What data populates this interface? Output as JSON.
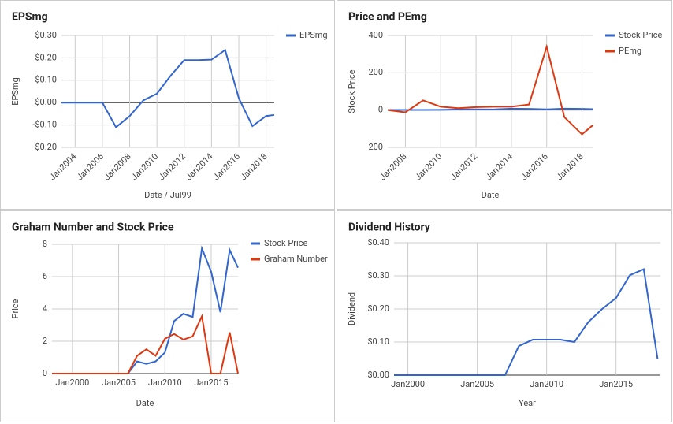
{
  "chart_data": [
    {
      "type": "line",
      "title": "EPSmg",
      "x_label": "Date / Jul99",
      "y_label": "EPSmg",
      "x": [
        2003,
        2004,
        2005,
        2006,
        2007,
        2008,
        2009,
        2010,
        2011,
        2012,
        2013,
        2014,
        2015,
        2016,
        2017,
        2018,
        2018.6
      ],
      "series": [
        {
          "name": "EPSmg",
          "color": "#3366cc",
          "values": [
            0,
            0,
            0,
            0,
            -0.11,
            -0.06,
            0.01,
            0.04,
            0.12,
            0.19,
            0.19,
            0.192,
            0.235,
            0.02,
            -0.105,
            -0.06,
            -0.055
          ]
        }
      ],
      "xlim": [
        2003,
        2018.6
      ],
      "xticks": [
        {
          "value": 2004,
          "label": "Jan2004"
        },
        {
          "value": 2006,
          "label": "Jan2006"
        },
        {
          "value": 2008,
          "label": "Jan2008"
        },
        {
          "value": 2010,
          "label": "Jan2010"
        },
        {
          "value": 2012,
          "label": "Jan2012"
        },
        {
          "value": 2014,
          "label": "Jan2014"
        },
        {
          "value": 2016,
          "label": "Jan2016"
        },
        {
          "value": 2018,
          "label": "Jan2018"
        }
      ],
      "xtick_rotation": -45,
      "ylim": [
        -0.2,
        0.3
      ],
      "yticks": [
        {
          "value": 0.3,
          "label": "$0.30"
        },
        {
          "value": 0.2,
          "label": "$0.20"
        },
        {
          "value": 0.1,
          "label": "$0.10"
        },
        {
          "value": 0,
          "label": "$0.00"
        },
        {
          "value": -0.1,
          "label": "-$0.10"
        },
        {
          "value": -0.2,
          "label": "-$0.20"
        }
      ],
      "grid": true,
      "legend": "right"
    },
    {
      "type": "line",
      "title": "Price and PEmg",
      "x_label": "Date",
      "y_label": "Stock Price",
      "x": [
        2007,
        2008,
        2009,
        2010,
        2011,
        2012,
        2013,
        2014,
        2015,
        2016,
        2017,
        2018,
        2018.6
      ],
      "series": [
        {
          "name": "Stock Price",
          "color": "#3366cc",
          "values": [
            0.75,
            0.6,
            0.75,
            1.3,
            3.25,
            3.7,
            3.5,
            7.75,
            6.3,
            3.8,
            7.65,
            6.55,
            5
          ]
        },
        {
          "name": "PEmg",
          "color": "#dc3912",
          "values": [
            0,
            -12,
            52,
            18,
            10,
            16,
            18,
            18,
            30,
            340,
            -38,
            -130,
            -82
          ]
        }
      ],
      "xlim": [
        2007,
        2018.6
      ],
      "xticks": [
        {
          "value": 2008,
          "label": "Jan2008"
        },
        {
          "value": 2010,
          "label": "Jan2010"
        },
        {
          "value": 2012,
          "label": "Jan2012"
        },
        {
          "value": 2014,
          "label": "Jan2014"
        },
        {
          "value": 2016,
          "label": "Jan2016"
        },
        {
          "value": 2018,
          "label": "Jan2018"
        }
      ],
      "xtick_rotation": -45,
      "ylim": [
        -200,
        400
      ],
      "yticks": [
        400,
        200,
        0,
        -200
      ],
      "grid": true,
      "legend": "right"
    },
    {
      "type": "line",
      "title": "Graham Number and Stock Price",
      "x_label": "Date",
      "y_label": "Price",
      "x": [
        1997.8,
        2006,
        2007,
        2008,
        2009,
        2010,
        2011,
        2012,
        2013,
        2014,
        2015,
        2016,
        2017,
        2017.9
      ],
      "series": [
        {
          "name": "Stock Price",
          "color": "#3366cc",
          "values": [
            0,
            0,
            0.75,
            0.6,
            0.75,
            1.3,
            3.25,
            3.7,
            3.5,
            7.75,
            6.3,
            3.8,
            7.65,
            6.55
          ]
        },
        {
          "name": "Graham Number",
          "color": "#dc3912",
          "values": [
            0,
            0,
            1.1,
            1.5,
            1.1,
            2.15,
            2.45,
            2.1,
            2.3,
            3.55,
            0,
            0,
            2.55,
            0
          ]
        }
      ],
      "xlim": [
        1997.8,
        2017.9
      ],
      "xticks": [
        {
          "value": 2000,
          "label": "Jan2000"
        },
        {
          "value": 2005,
          "label": "Jan2005"
        },
        {
          "value": 2010,
          "label": "Jan2010"
        },
        {
          "value": 2015,
          "label": "Jan2015"
        }
      ],
      "ylim": [
        0,
        8
      ],
      "yticks": [
        0,
        2,
        4,
        6,
        8
      ],
      "grid": true,
      "legend": "right"
    },
    {
      "type": "line",
      "title": "Dividend History",
      "x_label": "Year",
      "y_label": "Dividend",
      "x": [
        1999,
        2007,
        2008,
        2009,
        2010,
        2011,
        2012,
        2013,
        2014,
        2015,
        2016,
        2017,
        2018
      ],
      "series": [
        {
          "color": "#3366cc",
          "values": [
            0,
            0,
            0.088,
            0.107,
            0.107,
            0.107,
            0.1,
            0.16,
            0.2,
            0.233,
            0.302,
            0.32,
            0.048
          ]
        }
      ],
      "xlim": [
        1999,
        2018.2
      ],
      "xticks": [
        {
          "value": 2000,
          "label": "Jan2000"
        },
        {
          "value": 2005,
          "label": "Jan2005"
        },
        {
          "value": 2010,
          "label": "Jan2010"
        },
        {
          "value": 2015,
          "label": "Jan2015"
        }
      ],
      "ylim": [
        0,
        0.4
      ],
      "yticks": [
        {
          "value": 0.4,
          "label": "$0.40"
        },
        {
          "value": 0.3,
          "label": "$0.30"
        },
        {
          "value": 0.2,
          "label": "$0.20"
        },
        {
          "value": 0.1,
          "label": "$0.10"
        },
        {
          "value": 0,
          "label": "$0.00"
        }
      ],
      "grid": true
    }
  ]
}
